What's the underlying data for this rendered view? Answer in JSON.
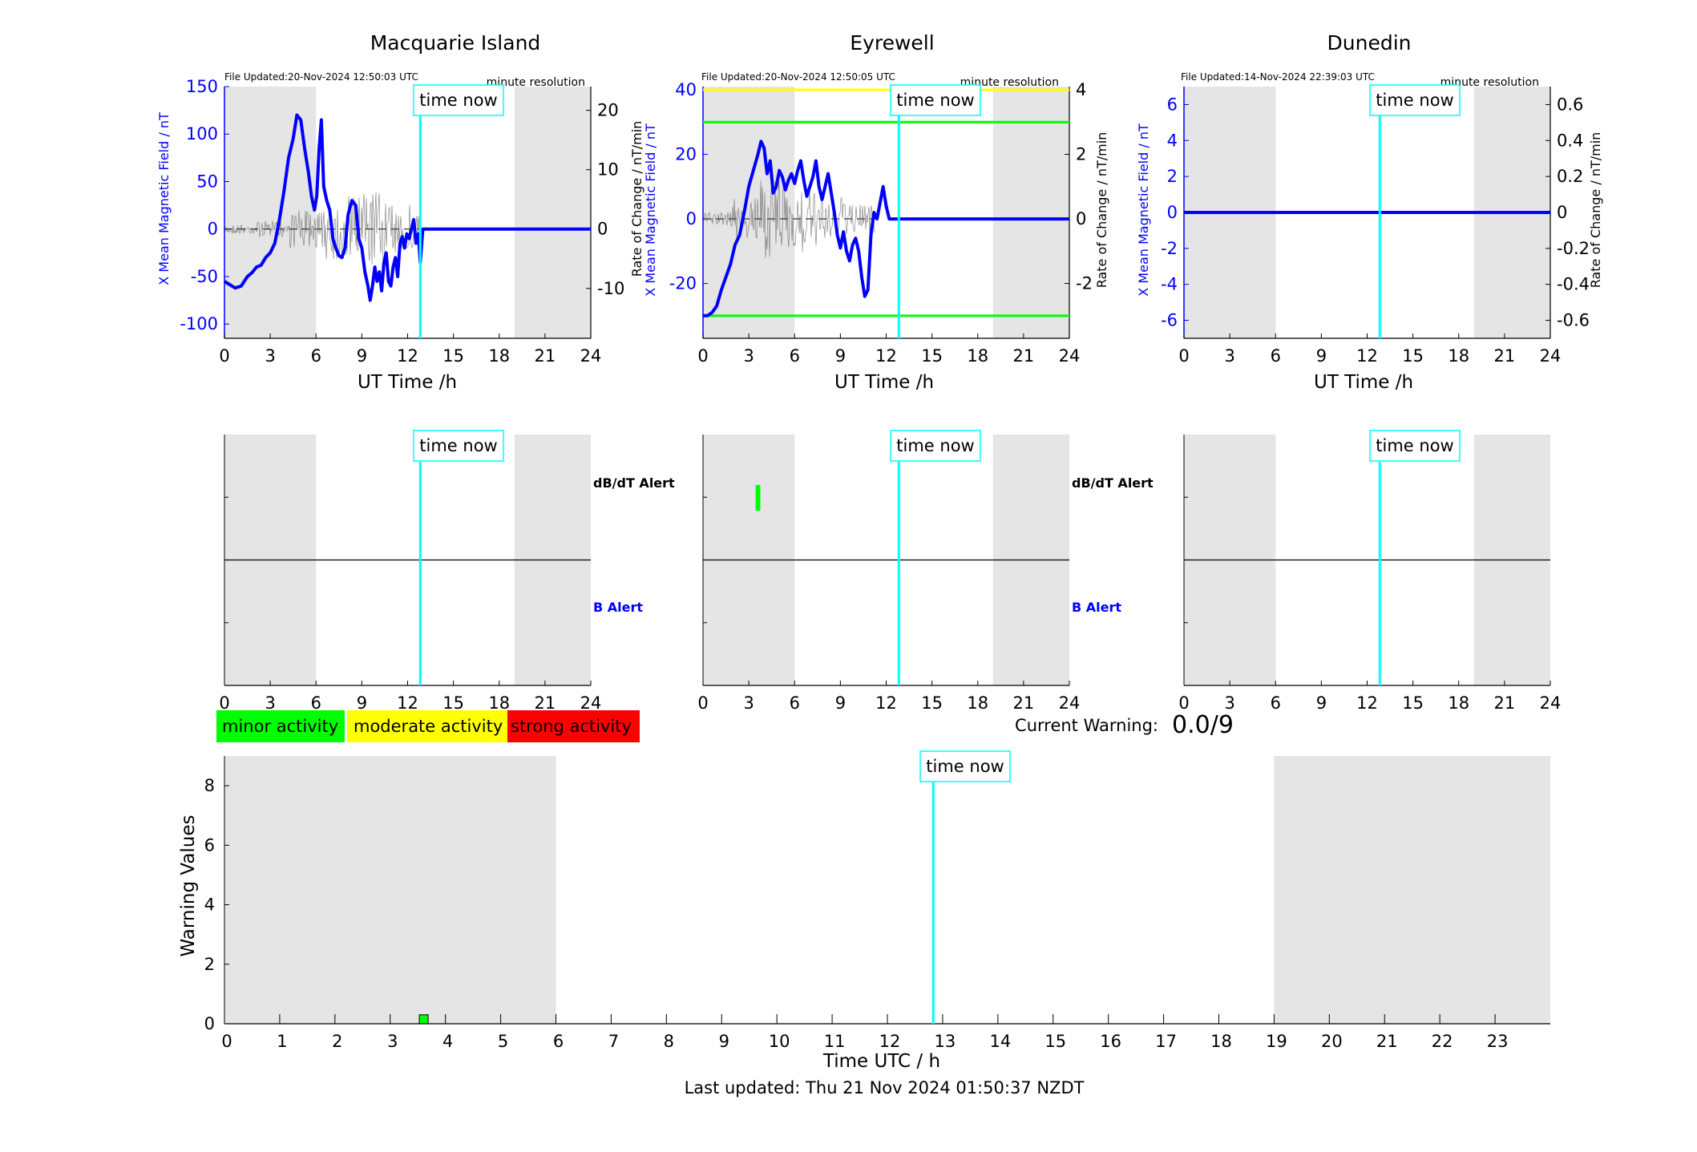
{
  "page": {
    "last_updated": "Last updated: Thu 21 Nov 2024 01:50:37 NZDT",
    "current_warning_label": "Current Warning:",
    "current_warning_value": "0.0/9",
    "time_now_label": "time now"
  },
  "legend": {
    "items": [
      {
        "label": "minor activity",
        "color": "#00ff00"
      },
      {
        "label": "moderate activity",
        "color": "#ffff00"
      },
      {
        "label": "strong activity",
        "color": "#ff0000"
      }
    ]
  },
  "colors": {
    "field": "#0000ff",
    "night_shade": "#e5e5e5",
    "time_now": "#00ffff",
    "rate_of_change": "#000000",
    "threshold_moderate": "#ffff00",
    "threshold_minor": "#00ff00",
    "alert_b_label": "#0000ff"
  },
  "time_now_h": 12.83,
  "chart_data": [
    {
      "type": "line",
      "station": "Macquarie Island",
      "title": "Macquarie Island",
      "file_updated": "File Updated:20-Nov-2024 12:50:03 UTC",
      "resolution": "minute resolution",
      "xlabel": "UT Time /h",
      "ylabel_left": "X Mean Magnetic Field / nT",
      "ylabel_right": "Rate of Change / nT/min",
      "xlim": [
        0,
        24
      ],
      "xticks": [
        "0",
        "3",
        "6",
        "9",
        "12",
        "15",
        "18",
        "21",
        "24"
      ],
      "ylim_left": [
        -115,
        150
      ],
      "yticks_left": [
        "150",
        "100",
        "50",
        "0",
        "-50",
        "-100"
      ],
      "ylim_right": [
        -18.4,
        24
      ],
      "yticks_right": [
        "20",
        "10",
        "0",
        "-10"
      ],
      "night_shading_h": [
        [
          0,
          6
        ],
        [
          19,
          24
        ]
      ],
      "thresholds_left": [],
      "series": [
        {
          "name": "X Mean Magnetic Field",
          "axis": "left",
          "x": [
            0,
            0.3,
            0.7,
            1.1,
            1.5,
            1.8,
            2.1,
            2.4,
            2.7,
            3.0,
            3.3,
            3.6,
            3.9,
            4.2,
            4.5,
            4.75,
            5.0,
            5.25,
            5.5,
            5.7,
            5.9,
            6.05,
            6.2,
            6.35,
            6.5,
            6.7,
            6.9,
            7.1,
            7.3,
            7.5,
            7.7,
            7.9,
            8.1,
            8.35,
            8.6,
            8.8,
            9.0,
            9.2,
            9.4,
            9.55,
            9.7,
            9.85,
            10.0,
            10.15,
            10.3,
            10.45,
            10.6,
            10.75,
            10.9,
            11.05,
            11.2,
            11.35,
            11.5,
            11.65,
            11.8,
            11.95,
            12.1,
            12.25,
            12.4,
            12.55,
            12.7,
            12.83,
            13.0,
            24.0
          ],
          "y": [
            -55,
            -58,
            -62,
            -60,
            -50,
            -46,
            -40,
            -38,
            -30,
            -25,
            -15,
            10,
            40,
            75,
            95,
            120,
            115,
            85,
            60,
            35,
            20,
            35,
            85,
            115,
            45,
            30,
            20,
            -10,
            -20,
            -28,
            -30,
            -20,
            15,
            30,
            25,
            -10,
            -20,
            -45,
            -60,
            -75,
            -60,
            -40,
            -55,
            -45,
            -65,
            -35,
            -25,
            -55,
            -60,
            -40,
            -30,
            -50,
            -15,
            -8,
            -20,
            -5,
            -10,
            0,
            10,
            -15,
            -5,
            -35,
            0,
            0
          ]
        },
        {
          "name": "Rate of Change",
          "axis": "right",
          "style": "noisy",
          "active_from_h": 0,
          "active_to_h": 12.8,
          "amplitude": [
            1.5,
            2.5,
            6,
            10,
            12,
            8
          ],
          "baseline_dashed": true
        }
      ]
    },
    {
      "type": "line",
      "station": "Eyrewell",
      "title": "Eyrewell",
      "file_updated": "File Updated:20-Nov-2024 12:50:05 UTC",
      "resolution": "minute resolution",
      "xlabel": "UT Time /h",
      "ylabel_left": "X Mean Magnetic Field / nT",
      "ylabel_right": "Rate of Change / nT/min",
      "xlim": [
        0,
        24
      ],
      "xticks": [
        "0",
        "3",
        "6",
        "9",
        "12",
        "15",
        "18",
        "21",
        "24"
      ],
      "ylim_left": [
        -37,
        41
      ],
      "yticks_left": [
        "40",
        "20",
        "0",
        "-20"
      ],
      "ylim_right": [
        -3.7,
        4.1
      ],
      "yticks_right": [
        "4",
        "2",
        "0",
        "-2"
      ],
      "night_shading_h": [
        [
          0,
          6
        ],
        [
          19,
          24
        ]
      ],
      "thresholds_left": [
        {
          "value": 40,
          "color": "#ffff00"
        },
        {
          "value": 30,
          "color": "#00ff00"
        },
        {
          "value": -30,
          "color": "#00ff00"
        }
      ],
      "series": [
        {
          "name": "X Mean Magnetic Field",
          "axis": "left",
          "x": [
            0,
            0.3,
            0.6,
            0.9,
            1.2,
            1.5,
            1.8,
            2.1,
            2.4,
            2.7,
            3.0,
            3.3,
            3.6,
            3.8,
            4.0,
            4.2,
            4.4,
            4.6,
            4.8,
            5.0,
            5.2,
            5.4,
            5.6,
            5.8,
            6.0,
            6.2,
            6.4,
            6.6,
            6.8,
            7.0,
            7.2,
            7.4,
            7.6,
            7.8,
            8.0,
            8.2,
            8.4,
            8.6,
            8.8,
            9.0,
            9.2,
            9.4,
            9.6,
            9.8,
            10.0,
            10.2,
            10.4,
            10.6,
            10.8,
            11.0,
            11.2,
            11.4,
            11.6,
            11.8,
            12.0,
            12.2,
            24.0
          ],
          "y": [
            -30,
            -30,
            -29,
            -27,
            -22,
            -18,
            -14,
            -8,
            -5,
            2,
            10,
            15,
            20,
            24,
            22,
            14,
            18,
            8,
            10,
            15,
            13,
            9,
            12,
            14,
            11,
            15,
            18,
            12,
            7,
            10,
            13,
            18,
            10,
            6,
            10,
            14,
            8,
            2,
            -5,
            -9,
            -4,
            -10,
            -13,
            -8,
            -6,
            -10,
            -18,
            -24,
            -22,
            -5,
            2,
            0,
            5,
            10,
            4,
            0,
            0
          ]
        },
        {
          "name": "Rate of Change",
          "axis": "right",
          "style": "noisy",
          "active_from_h": 0,
          "active_to_h": 11.3,
          "amplitude": [
            0.4,
            1.2,
            2.2,
            1.6,
            1.2,
            0.8
          ],
          "baseline_dashed": true
        }
      ]
    },
    {
      "type": "line",
      "station": "Dunedin",
      "title": "Dunedin",
      "file_updated": "File Updated:14-Nov-2024 22:39:03 UTC",
      "resolution": "minute resolution",
      "xlabel": "UT Time /h",
      "ylabel_left": "X Mean Magnetic Field / nT",
      "ylabel_right": "Rate of Change / nT/min",
      "xlim": [
        0,
        24
      ],
      "xticks": [
        "0",
        "3",
        "6",
        "9",
        "12",
        "15",
        "18",
        "21",
        "24"
      ],
      "ylim_left": [
        -7,
        7
      ],
      "yticks_left": [
        "6",
        "4",
        "2",
        "0",
        "-2",
        "-4",
        "-6"
      ],
      "ylim_right": [
        -0.7,
        0.7
      ],
      "yticks_right": [
        "0.6",
        "0.4",
        "0.2",
        "0",
        "-0.2",
        "-0.4",
        "-0.6"
      ],
      "night_shading_h": [
        [
          0,
          6
        ],
        [
          19,
          24
        ]
      ],
      "thresholds_left": [],
      "series": [
        {
          "name": "X Mean Magnetic Field",
          "axis": "left",
          "x": [
            0,
            24
          ],
          "y": [
            0,
            0
          ]
        }
      ]
    },
    {
      "type": "alert",
      "station": "Macquarie Island",
      "xlim": [
        0,
        24
      ],
      "xticks": [
        "0",
        "3",
        "6",
        "9",
        "12",
        "15",
        "18",
        "21",
        "24"
      ],
      "night_shading_h": [
        [
          0,
          6
        ],
        [
          19,
          24
        ]
      ],
      "labels": {
        "upper": "dB/dT Alert",
        "lower": "B Alert"
      },
      "dbdt_alerts": [],
      "b_alerts": []
    },
    {
      "type": "alert",
      "station": "Eyrewell",
      "xlim": [
        0,
        24
      ],
      "xticks": [
        "0",
        "3",
        "6",
        "9",
        "12",
        "15",
        "18",
        "21",
        "24"
      ],
      "night_shading_h": [
        [
          0,
          6
        ],
        [
          19,
          24
        ]
      ],
      "labels": {
        "upper": "dB/dT Alert",
        "lower": "B Alert"
      },
      "dbdt_alerts": [
        {
          "t_h": 3.6,
          "level": "minor"
        }
      ],
      "b_alerts": []
    },
    {
      "type": "alert",
      "station": "Dunedin",
      "xlim": [
        0,
        24
      ],
      "xticks": [
        "0",
        "3",
        "6",
        "9",
        "12",
        "15",
        "18",
        "21",
        "24"
      ],
      "night_shading_h": [
        [
          0,
          6
        ],
        [
          19,
          24
        ]
      ],
      "labels": {
        "upper": "dB/dT Alert",
        "lower": "B Alert"
      },
      "dbdt_alerts": [],
      "b_alerts": []
    },
    {
      "type": "bar",
      "title": "",
      "xlabel": "Time UTC / h",
      "ylabel": "Warning Values",
      "xlim": [
        0,
        24
      ],
      "xticks": [
        "0",
        "1",
        "2",
        "3",
        "4",
        "5",
        "6",
        "7",
        "8",
        "9",
        "10",
        "11",
        "12",
        "13",
        "14",
        "15",
        "16",
        "17",
        "18",
        "19",
        "20",
        "21",
        "22",
        "23"
      ],
      "ylim": [
        0,
        9
      ],
      "yticks": [
        "8",
        "6",
        "4",
        "2",
        "0"
      ],
      "night_shading_h": [
        [
          0,
          6
        ],
        [
          19,
          24
        ]
      ],
      "bars": [
        {
          "t_h": 3.6,
          "value": 0.3,
          "level": "minor"
        }
      ]
    }
  ]
}
